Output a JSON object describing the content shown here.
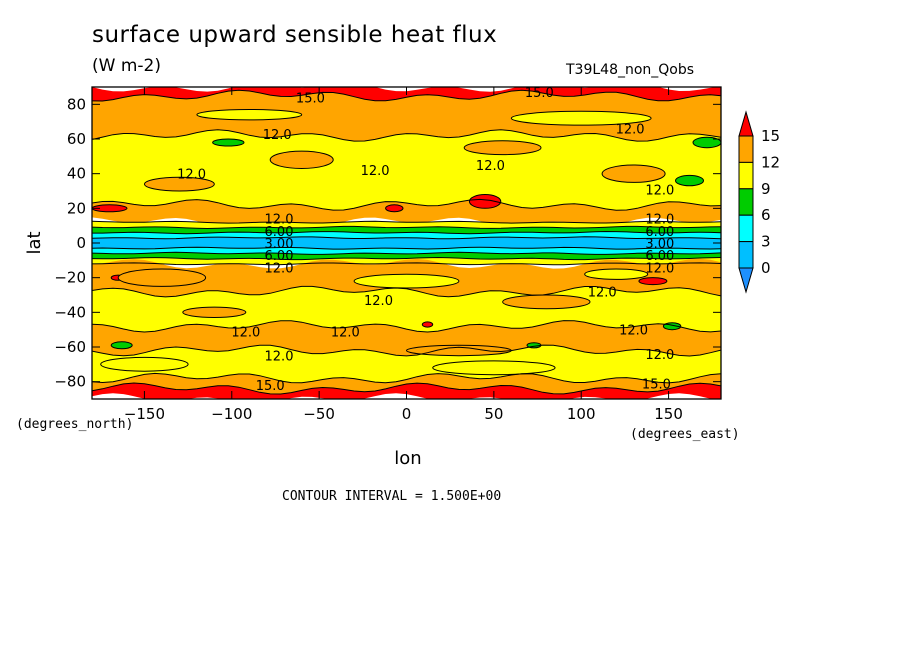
{
  "chart_data": {
    "type": "heatmap",
    "title": "surface upward sensible heat flux",
    "units": "(W m-2)",
    "run_label": "T39L48_non_Qobs",
    "xlabel": "lon",
    "ylabel": "lat",
    "x_unit_label": "(degrees_east)",
    "y_unit_label": "(degrees_north)",
    "xlim": [
      -180,
      180
    ],
    "ylim": [
      -90,
      90
    ],
    "x_ticks": [
      -150,
      -100,
      -50,
      0,
      50,
      100,
      150
    ],
    "y_ticks": [
      80,
      60,
      40,
      20,
      0,
      -20,
      -40,
      -60,
      -80
    ],
    "contour_interval_note": "CONTOUR INTERVAL = 1.500E+00",
    "colorbar": {
      "levels": [
        0,
        3,
        6,
        9,
        12,
        15
      ],
      "labels": [
        "15",
        "12",
        "9",
        "6",
        "3",
        "0"
      ],
      "colors": [
        "#1e90ff",
        "#00bfff",
        "#00ffff",
        "#00cc00",
        "#ffff00",
        "#ffa500",
        "#ff0000"
      ]
    },
    "colors": {
      "yellow": "#ffff00",
      "orange": "#ffa500",
      "red": "#ff0000",
      "green": "#00cc00",
      "cyan": "#00ffff",
      "skyblue": "#00bfff",
      "blue": "#1e90ff"
    },
    "zonal_bands": [
      {
        "lat_top": 90,
        "lat_bottom": 85,
        "level": "red"
      },
      {
        "lat_top": 85,
        "lat_bottom": 62,
        "level": "orange"
      },
      {
        "lat_top": 62,
        "lat_bottom": 22,
        "level": "yellow"
      },
      {
        "lat_top": 22,
        "lat_bottom": 12,
        "level": "orange"
      },
      {
        "lat_top": 12,
        "lat_bottom": 9,
        "level": "yellow"
      },
      {
        "lat_top": 9,
        "lat_bottom": 6,
        "level": "green"
      },
      {
        "lat_top": 6,
        "lat_bottom": 3,
        "level": "cyan"
      },
      {
        "lat_top": 3,
        "lat_bottom": -3,
        "level": "skyblue"
      },
      {
        "lat_top": -3,
        "lat_bottom": -6,
        "level": "cyan"
      },
      {
        "lat_top": -6,
        "lat_bottom": -9,
        "level": "green"
      },
      {
        "lat_top": -9,
        "lat_bottom": -12,
        "level": "yellow"
      },
      {
        "lat_top": -12,
        "lat_bottom": -28,
        "level": "orange"
      },
      {
        "lat_top": -28,
        "lat_bottom": -48,
        "level": "yellow"
      },
      {
        "lat_top": -48,
        "lat_bottom": -62,
        "level": "orange"
      },
      {
        "lat_top": -62,
        "lat_bottom": -78,
        "level": "yellow"
      },
      {
        "lat_top": -78,
        "lat_bottom": -84,
        "level": "orange"
      },
      {
        "lat_top": -84,
        "lat_bottom": -90,
        "level": "red"
      }
    ],
    "patches": [
      {
        "lon": 45,
        "lat": 24,
        "rlon": 9,
        "rlat": 4,
        "level": "red"
      },
      {
        "lon": -7,
        "lat": 20,
        "rlon": 5,
        "rlat": 2,
        "level": "red"
      },
      {
        "lon": -170,
        "lat": 20,
        "rlon": 10,
        "rlat": 2,
        "level": "red"
      },
      {
        "lon": 141,
        "lat": -22,
        "rlon": 8,
        "rlat": 2,
        "level": "red"
      },
      {
        "lon": -165,
        "lat": -20,
        "rlon": 4,
        "rlat": 1.5,
        "level": "red"
      },
      {
        "lon": 12,
        "lat": -47,
        "rlon": 3,
        "rlat": 1.5,
        "level": "red"
      },
      {
        "lon": -102,
        "lat": 58,
        "rlon": 9,
        "rlat": 2,
        "level": "green"
      },
      {
        "lon": 172,
        "lat": 58,
        "rlon": 8,
        "rlat": 3,
        "level": "green"
      },
      {
        "lon": 162,
        "lat": 36,
        "rlon": 8,
        "rlat": 3,
        "level": "green"
      },
      {
        "lon": 152,
        "lat": -48,
        "rlon": 5,
        "rlat": 2,
        "level": "green"
      },
      {
        "lon": -163,
        "lat": -59,
        "rlon": 6,
        "rlat": 2,
        "level": "green"
      },
      {
        "lon": 73,
        "lat": -59,
        "rlon": 4,
        "rlat": 1.5,
        "level": "green"
      },
      {
        "lon": -60,
        "lat": 48,
        "rlon": 18,
        "rlat": 5,
        "level": "orange"
      },
      {
        "lon": 55,
        "lat": 55,
        "rlon": 22,
        "rlat": 4,
        "level": "orange"
      },
      {
        "lon": 130,
        "lat": 40,
        "rlon": 18,
        "rlat": 5,
        "level": "orange"
      },
      {
        "lon": -130,
        "lat": 34,
        "rlon": 20,
        "rlat": 4,
        "level": "orange"
      },
      {
        "lon": 80,
        "lat": -34,
        "rlon": 25,
        "rlat": 4,
        "level": "orange"
      },
      {
        "lon": -110,
        "lat": -40,
        "rlon": 18,
        "rlat": 3,
        "level": "orange"
      },
      {
        "lon": -140,
        "lat": -20,
        "rlon": 25,
        "rlat": 5,
        "level": "orange"
      },
      {
        "lon": 30,
        "lat": -62,
        "rlon": 30,
        "rlat": 3,
        "level": "orange"
      },
      {
        "lon": 100,
        "lat": 72,
        "rlon": 40,
        "rlat": 4,
        "level": "yellow"
      },
      {
        "lon": -90,
        "lat": 74,
        "rlon": 30,
        "rlat": 3,
        "level": "yellow"
      },
      {
        "lon": -150,
        "lat": -70,
        "rlon": 25,
        "rlat": 4,
        "level": "yellow"
      },
      {
        "lon": 50,
        "lat": -72,
        "rlon": 35,
        "rlat": 4,
        "level": "yellow"
      },
      {
        "lon": 0,
        "lat": -22,
        "rlon": 30,
        "rlat": 4,
        "level": "yellow"
      },
      {
        "lon": 120,
        "lat": -18,
        "rlon": 18,
        "rlat": 3,
        "level": "yellow"
      }
    ],
    "contour_labels": [
      {
        "text": "15.0",
        "lon": -55,
        "lat": 84
      },
      {
        "text": "15.0",
        "lon": 76,
        "lat": 87
      },
      {
        "text": "12.0",
        "lon": -74,
        "lat": 63
      },
      {
        "text": "12.0",
        "lon": 128,
        "lat": 66
      },
      {
        "text": "12.0",
        "lon": -123,
        "lat": 40
      },
      {
        "text": "12.0",
        "lon": -18,
        "lat": 42
      },
      {
        "text": "12.0",
        "lon": 48,
        "lat": 45
      },
      {
        "text": "12.0",
        "lon": 145,
        "lat": 31
      },
      {
        "text": "12.0",
        "lon": -73,
        "lat": 14
      },
      {
        "text": "12.0",
        "lon": 145,
        "lat": 14
      },
      {
        "text": "6.00",
        "lon": -73,
        "lat": 7
      },
      {
        "text": "6.00",
        "lon": 145,
        "lat": 7
      },
      {
        "text": "3.00",
        "lon": -73,
        "lat": 0
      },
      {
        "text": "3.00",
        "lon": 145,
        "lat": 0
      },
      {
        "text": "6.00",
        "lon": -73,
        "lat": -7
      },
      {
        "text": "6.00",
        "lon": 145,
        "lat": -7
      },
      {
        "text": "12.0",
        "lon": -73,
        "lat": -14
      },
      {
        "text": "12.0",
        "lon": 145,
        "lat": -14
      },
      {
        "text": "12.0",
        "lon": -16,
        "lat": -33
      },
      {
        "text": "12.0",
        "lon": 112,
        "lat": -28
      },
      {
        "text": "12.0",
        "lon": -92,
        "lat": -51
      },
      {
        "text": "12.0",
        "lon": -35,
        "lat": -51
      },
      {
        "text": "12.0",
        "lon": 130,
        "lat": -50
      },
      {
        "text": "12.0",
        "lon": -73,
        "lat": -65
      },
      {
        "text": "12.0",
        "lon": 145,
        "lat": -64
      },
      {
        "text": "15.0",
        "lon": -78,
        "lat": -82
      },
      {
        "text": "15.0",
        "lon": 143,
        "lat": -81
      }
    ]
  }
}
